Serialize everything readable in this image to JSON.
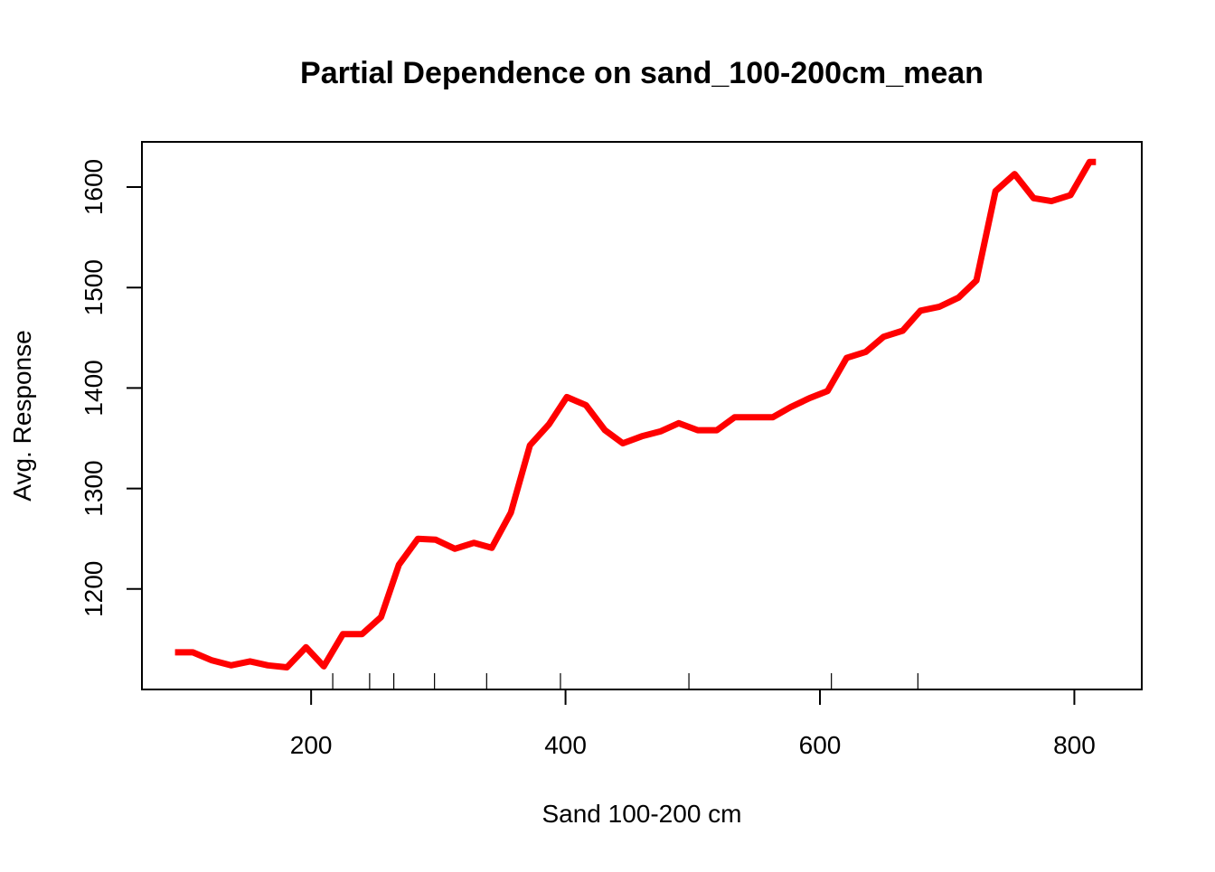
{
  "chart_data": {
    "type": "line",
    "title": "Partial Dependence on sand_100-200cm_mean",
    "xlabel": "Sand 100-200 cm",
    "ylabel": "Avg. Response",
    "xlim": [
      67,
      853
    ],
    "ylim": [
      1100,
      1645
    ],
    "x_ticks": [
      200,
      400,
      600,
      800
    ],
    "y_ticks": [
      1200,
      1300,
      1400,
      1500,
      1600
    ],
    "rug": [
      217,
      246,
      265,
      297,
      338,
      396,
      497,
      609,
      677
    ],
    "grid": false,
    "legend": "none",
    "line_color": "#ff0000",
    "series": [
      {
        "x": [
          93,
          107,
          122,
          137,
          152,
          166,
          181,
          196,
          210,
          225,
          240,
          255,
          269,
          284,
          298,
          313,
          328,
          342,
          357,
          372,
          387,
          401,
          416,
          431,
          445,
          460,
          475,
          489,
          504,
          519,
          533,
          548,
          563,
          577,
          592,
          606,
          621,
          636,
          650,
          665,
          679,
          694,
          709,
          723,
          738,
          753,
          768,
          782,
          797,
          812,
          817
        ],
        "y": [
          1137,
          1137,
          1129,
          1124,
          1128,
          1124,
          1122,
          1142,
          1123,
          1155,
          1155,
          1172,
          1224,
          1250,
          1249,
          1240,
          1246,
          1241,
          1276,
          1343,
          1364,
          1391,
          1383,
          1358,
          1345,
          1352,
          1357,
          1365,
          1358,
          1358,
          1371,
          1371,
          1371,
          1381,
          1390,
          1397,
          1430,
          1436,
          1451,
          1457,
          1477,
          1481,
          1490,
          1507,
          1596,
          1613,
          1589,
          1586,
          1592,
          1625,
          1625
        ]
      }
    ]
  }
}
